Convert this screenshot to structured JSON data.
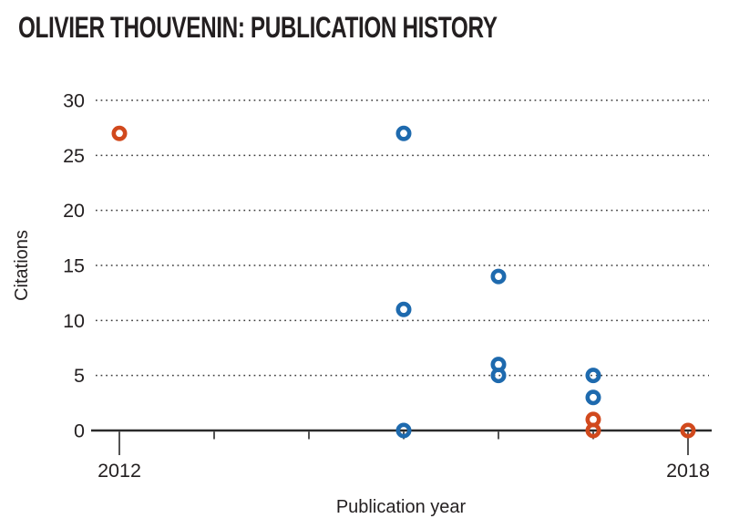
{
  "page": {
    "title": "OLIVIER THOUVENIN: PUBLICATION HISTORY"
  },
  "chart_data": {
    "type": "scatter",
    "title": "OLIVIER THOUVENIN: PUBLICATION HISTORY",
    "xlabel": "Publication year",
    "ylabel": "Citations",
    "xlim": [
      2011.7,
      2018.25
    ],
    "ylim": [
      0,
      30
    ],
    "xticks": [
      2012,
      2013,
      2014,
      2015,
      2016,
      2017,
      2018
    ],
    "xtick_labels": [
      "2012",
      "",
      "",
      "",
      "",
      "",
      "2018"
    ],
    "yticks": [
      0,
      5,
      10,
      15,
      20,
      25,
      30
    ],
    "grid": "horizontal-dotted",
    "legend": "none",
    "marker": "open-circle",
    "series": [
      {
        "name": "orange",
        "color": "#d1491d",
        "points": [
          {
            "x": 2012,
            "y": 27
          },
          {
            "x": 2017,
            "y": 1
          },
          {
            "x": 2017,
            "y": 0
          },
          {
            "x": 2018,
            "y": 0
          }
        ]
      },
      {
        "name": "blue",
        "color": "#1e6aae",
        "points": [
          {
            "x": 2015,
            "y": 27
          },
          {
            "x": 2015,
            "y": 11
          },
          {
            "x": 2015,
            "y": 0
          },
          {
            "x": 2016,
            "y": 14
          },
          {
            "x": 2016,
            "y": 6
          },
          {
            "x": 2016,
            "y": 5
          },
          {
            "x": 2017,
            "y": 5
          },
          {
            "x": 2017,
            "y": 3
          }
        ]
      }
    ],
    "style": {
      "text_color": "#231f20",
      "grid_color": "#3a3a3a",
      "axis_color": "#2a2a2a"
    }
  }
}
